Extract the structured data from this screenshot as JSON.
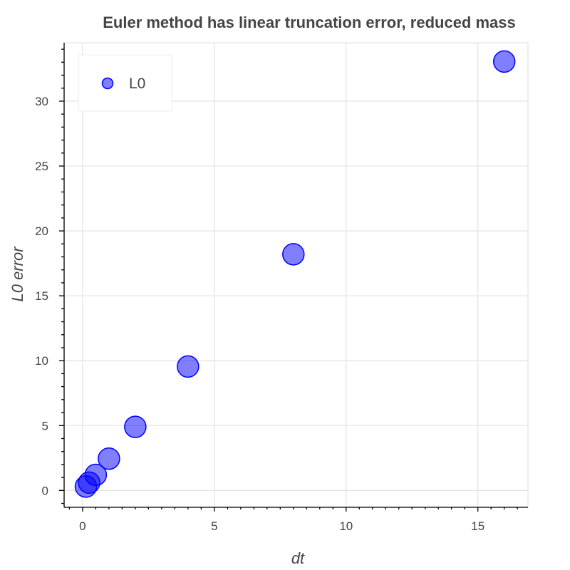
{
  "chart_data": {
    "type": "scatter",
    "title": "Euler method has linear truncation error, reduced mass",
    "xlabel": "dt",
    "ylabel": "L0 error",
    "xlim": [
      -0.7,
      16.9
    ],
    "ylim": [
      -1.3,
      34.5
    ],
    "x_ticks": [
      0,
      5,
      10,
      15
    ],
    "y_ticks": [
      0,
      5,
      10,
      15,
      20,
      25,
      30
    ],
    "grid": true,
    "legend_position": "top-left",
    "series": [
      {
        "name": "L0",
        "color": "#0000ff",
        "x": [
          0.125,
          0.25,
          0.5,
          1,
          2,
          4,
          8,
          16
        ],
        "y": [
          0.3,
          0.6,
          1.2,
          2.45,
          4.9,
          9.55,
          18.2,
          33.05
        ]
      }
    ]
  }
}
